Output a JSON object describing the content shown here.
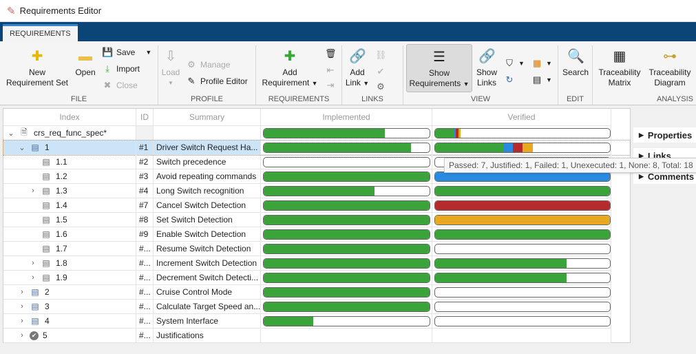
{
  "window": {
    "title": "Requirements Editor"
  },
  "tabs": [
    {
      "label": "REQUIREMENTS"
    }
  ],
  "toolbar": {
    "file": {
      "label": "FILE",
      "new": "New\nRequirement Set",
      "open": "Open",
      "save": "Save",
      "import": "Import",
      "close": "Close"
    },
    "profile": {
      "label": "PROFILE",
      "load": "Load",
      "manage": "Manage",
      "profile_editor": "Profile Editor"
    },
    "requirements": {
      "label": "REQUIREMENTS",
      "add": "Add",
      "add2": "Requirement"
    },
    "links": {
      "label": "LINKS",
      "add": "Add",
      "add2": "Link"
    },
    "view": {
      "label": "VIEW",
      "show_req": "Show",
      "show_req2": "Requirements",
      "show_links": "Show",
      "show_links2": "Links"
    },
    "edit": {
      "label": "EDIT",
      "search": "Search"
    },
    "analysis": {
      "label": "ANALYSIS",
      "matrix": "Traceability",
      "matrix2": "Matrix",
      "diagram": "Traceability",
      "diagram2": "Diagram"
    }
  },
  "columns": {
    "index": "Index",
    "id": "ID",
    "summary": "Summary",
    "implemented": "Implemented",
    "verified": "Verified"
  },
  "colors": {
    "passed": "#3aa33a",
    "justified": "#2a8ae0",
    "failed": "#b52b2b",
    "unexecuted": "#e8a820",
    "selection": "#cce4f7"
  },
  "rows": [
    {
      "level": 0,
      "expander": "expanded",
      "icon": "req-set",
      "index": "crs_req_func_spec*",
      "id": "",
      "summary": "",
      "implemented": 0.73,
      "verified": {
        "passed": 0.11,
        "justified": 0.01,
        "failed": 0.015,
        "unexecuted": 0.01
      }
    },
    {
      "level": 1,
      "expander": "expanded",
      "icon": "req",
      "index": "1",
      "id": "#1",
      "summary": "Driver Switch Request Ha...",
      "implemented": 0.89,
      "verified": {
        "passed": 0.39,
        "justified": 0.056,
        "failed": 0.056,
        "unexecuted": 0.056
      },
      "selected": true
    },
    {
      "level": 2,
      "expander": "",
      "icon": "req",
      "index": "1.1",
      "id": "#2",
      "summary": "Switch precedence",
      "implemented": 0,
      "verified": {}
    },
    {
      "level": 2,
      "expander": "",
      "icon": "req",
      "index": "1.2",
      "id": "#3",
      "summary": "Avoid repeating commands",
      "implemented": 1,
      "verified": {
        "justified": 1
      }
    },
    {
      "level": 2,
      "expander": "collapsed",
      "icon": "req",
      "index": "1.3",
      "id": "#4",
      "summary": "Long Switch recognition",
      "implemented": 0.67,
      "verified": {
        "passed": 1
      }
    },
    {
      "level": 2,
      "expander": "",
      "icon": "req",
      "index": "1.4",
      "id": "#7",
      "summary": "Cancel Switch Detection",
      "implemented": 1,
      "verified": {
        "failed": 1
      }
    },
    {
      "level": 2,
      "expander": "",
      "icon": "req",
      "index": "1.5",
      "id": "#8",
      "summary": "Set Switch Detection",
      "implemented": 1,
      "verified": {
        "unexecuted": 1
      }
    },
    {
      "level": 2,
      "expander": "",
      "icon": "req",
      "index": "1.6",
      "id": "#9",
      "summary": "Enable Switch Detection",
      "implemented": 1,
      "verified": {
        "passed": 1
      }
    },
    {
      "level": 2,
      "expander": "",
      "icon": "req",
      "index": "1.7",
      "id": "#...",
      "summary": "Resume Switch Detection",
      "implemented": 1,
      "verified": {}
    },
    {
      "level": 2,
      "expander": "collapsed",
      "icon": "req",
      "index": "1.8",
      "id": "#...",
      "summary": "Increment Switch Detection",
      "implemented": 1,
      "verified": {
        "passed": 0.75
      }
    },
    {
      "level": 2,
      "expander": "collapsed",
      "icon": "req",
      "index": "1.9",
      "id": "#...",
      "summary": "Decrement Switch Detecti...",
      "implemented": 1,
      "verified": {
        "passed": 0.75
      }
    },
    {
      "level": 1,
      "expander": "collapsed",
      "icon": "req",
      "index": "2",
      "id": "#...",
      "summary": "Cruise Control Mode",
      "implemented": 1,
      "verified": {}
    },
    {
      "level": 1,
      "expander": "collapsed",
      "icon": "req",
      "index": "3",
      "id": "#...",
      "summary": "Calculate Target Speed an...",
      "implemented": 1,
      "verified": {}
    },
    {
      "level": 1,
      "expander": "collapsed",
      "icon": "req",
      "index": "4",
      "id": "#...",
      "summary": "System Interface",
      "implemented": 0.3,
      "verified": {}
    },
    {
      "level": 1,
      "expander": "collapsed",
      "icon": "justification",
      "index": "5",
      "id": "#...",
      "summary": "Justifications",
      "implemented": null,
      "verified": null
    }
  ],
  "tooltip": "Passed: 7, Justified: 1, Failed: 1, Unexecuted: 1, None: 8, Total: 18",
  "side_panel": [
    {
      "label": "Properties"
    },
    {
      "label": "Links"
    },
    {
      "label": "Comments"
    }
  ]
}
